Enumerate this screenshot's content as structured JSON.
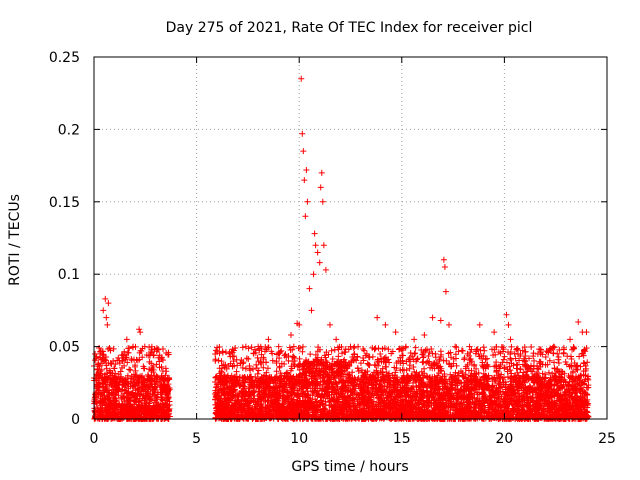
{
  "chart_data": {
    "type": "scatter",
    "title": "Day 275 of 2021, Rate Of TEC Index for receiver picl",
    "xlabel": "GPS time / hours",
    "ylabel": "ROTI / TECUs",
    "xlim": [
      0,
      25
    ],
    "ylim": [
      0,
      0.25
    ],
    "xticks": [
      0,
      5,
      10,
      15,
      20,
      25
    ],
    "xtick_labels": [
      "0",
      "5",
      "10",
      "15",
      "20",
      "25"
    ],
    "yticks": [
      0,
      0.05,
      0.1,
      0.15,
      0.2,
      0.25
    ],
    "ytick_labels": [
      "0",
      "0.05",
      "0.1",
      "0.15",
      "0.2",
      "0.25"
    ],
    "grid": true,
    "marker": "+",
    "series": [
      {
        "name": "ROTI",
        "color": "#ff0000",
        "x": [
          0.1,
          0.3,
          0.45,
          0.55,
          0.6,
          0.65,
          0.7,
          1.0,
          1.4,
          1.6,
          2.2,
          2.25,
          2.8,
          3.1,
          3.2,
          3.5,
          6.2,
          6.8,
          7.4,
          8.0,
          8.5,
          9.0,
          9.6,
          9.9,
          10.0,
          10.1,
          10.15,
          10.2,
          10.25,
          10.3,
          10.35,
          10.4,
          10.5,
          10.6,
          10.7,
          10.75,
          10.8,
          10.9,
          11.0,
          11.05,
          11.1,
          11.15,
          11.2,
          11.3,
          11.5,
          11.8,
          12.5,
          13.3,
          13.8,
          14.2,
          14.7,
          15.2,
          15.6,
          16.1,
          16.5,
          16.9,
          17.05,
          17.1,
          17.15,
          17.3,
          17.6,
          18.2,
          18.8,
          19.5,
          20.1,
          20.2,
          20.3,
          21.0,
          21.6,
          22.4,
          22.9,
          23.2,
          23.6,
          23.8,
          24.0
        ],
        "y": [
          0.028,
          0.045,
          0.075,
          0.083,
          0.07,
          0.065,
          0.08,
          0.035,
          0.04,
          0.055,
          0.062,
          0.06,
          0.03,
          0.048,
          0.044,
          0.035,
          0.033,
          0.04,
          0.05,
          0.05,
          0.055,
          0.05,
          0.058,
          0.066,
          0.065,
          0.235,
          0.197,
          0.185,
          0.165,
          0.14,
          0.172,
          0.15,
          0.09,
          0.075,
          0.1,
          0.128,
          0.12,
          0.115,
          0.108,
          0.16,
          0.17,
          0.15,
          0.12,
          0.103,
          0.065,
          0.055,
          0.05,
          0.045,
          0.07,
          0.065,
          0.06,
          0.05,
          0.055,
          0.058,
          0.07,
          0.068,
          0.11,
          0.105,
          0.088,
          0.065,
          0.05,
          0.045,
          0.065,
          0.06,
          0.072,
          0.065,
          0.055,
          0.04,
          0.035,
          0.05,
          0.048,
          0.055,
          0.067,
          0.06,
          0.06
        ],
        "dense_band": {
          "segments": [
            [
              0.0,
              3.7
            ],
            [
              5.9,
              24.1
            ]
          ],
          "y_range": [
            0.0,
            0.03
          ],
          "note": "continuous dense cloud of + markers near the baseline"
        }
      }
    ]
  }
}
